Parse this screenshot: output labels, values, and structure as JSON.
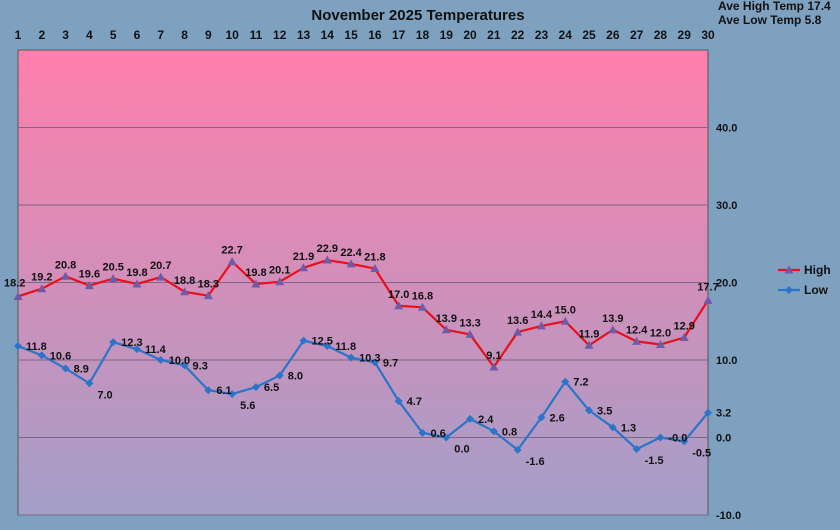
{
  "chart_data": {
    "type": "line",
    "title": "November 2025 Temperatures",
    "summary": [
      "Ave High Temp 17.4",
      "Ave Low Temp 5.8"
    ],
    "x": [
      "1",
      "2",
      "3",
      "4",
      "5",
      "6",
      "7",
      "8",
      "9",
      "10",
      "11",
      "12",
      "13",
      "14",
      "15",
      "16",
      "17",
      "18",
      "19",
      "20",
      "21",
      "22",
      "23",
      "24",
      "25",
      "26",
      "27",
      "28",
      "29",
      "30"
    ],
    "ylim": [
      -10,
      50
    ],
    "yticks": [
      -10,
      0,
      10,
      20,
      30,
      40
    ],
    "ytick_labels": [
      "-10.0",
      "0.0",
      "10.0",
      "20.0",
      "30.0",
      "40.0"
    ],
    "legend_position": "right",
    "colors": {
      "background": "#7fa1c0",
      "plot_top": "#ff7fab",
      "plot_bottom": "#a39fc8",
      "grid": "#7a6a88",
      "high": "#e8101c",
      "low": "#2c74c8",
      "marker": "#6f5aa8"
    },
    "series": [
      {
        "name": "High",
        "values": [
          18.2,
          19.2,
          20.8,
          19.6,
          20.5,
          19.8,
          20.7,
          18.8,
          18.3,
          22.7,
          19.8,
          20.1,
          21.9,
          22.9,
          22.4,
          21.8,
          17.0,
          16.8,
          13.9,
          13.3,
          9.1,
          13.6,
          14.4,
          15.0,
          11.9,
          13.9,
          12.4,
          12.0,
          12.9,
          17.7
        ],
        "labels": [
          "18.2",
          "19.2",
          "20.8",
          "19.6",
          "20.5",
          "19.8",
          "20.7",
          "18.8",
          "18.3",
          "22.7",
          "19.8",
          "20.1",
          "21.9",
          "22.9",
          "22.4",
          "21.8",
          "17.0",
          "16.8",
          "13.9",
          "13.3",
          "9.1",
          "13.6",
          "14.4",
          "15.0",
          "11.9",
          "13.9",
          "12.4",
          "12.0",
          "12.9",
          "17.7"
        ]
      },
      {
        "name": "Low",
        "values": [
          11.8,
          10.6,
          8.9,
          7.0,
          12.3,
          11.4,
          10.0,
          9.3,
          6.1,
          5.6,
          6.5,
          8.0,
          12.5,
          11.8,
          10.3,
          9.7,
          4.7,
          0.6,
          0.0,
          2.4,
          0.8,
          -1.6,
          2.6,
          7.2,
          3.5,
          1.3,
          -1.5,
          -0.0,
          -0.5,
          3.2
        ],
        "labels": [
          "11.8",
          "10.6",
          "8.9",
          "7.0",
          "12.3",
          "11.4",
          "10.0",
          "9.3",
          "6.1",
          "5.6",
          "6.5",
          "8.0",
          "12.5",
          "11.8",
          "10.3",
          "9.7",
          "4.7",
          "0.6",
          "0.0",
          "2.4",
          "0.8",
          "-1.6",
          "2.6",
          "7.2",
          "3.5",
          "1.3",
          "-1.5",
          "-0.0",
          "-0.5",
          "3.2"
        ]
      }
    ]
  }
}
